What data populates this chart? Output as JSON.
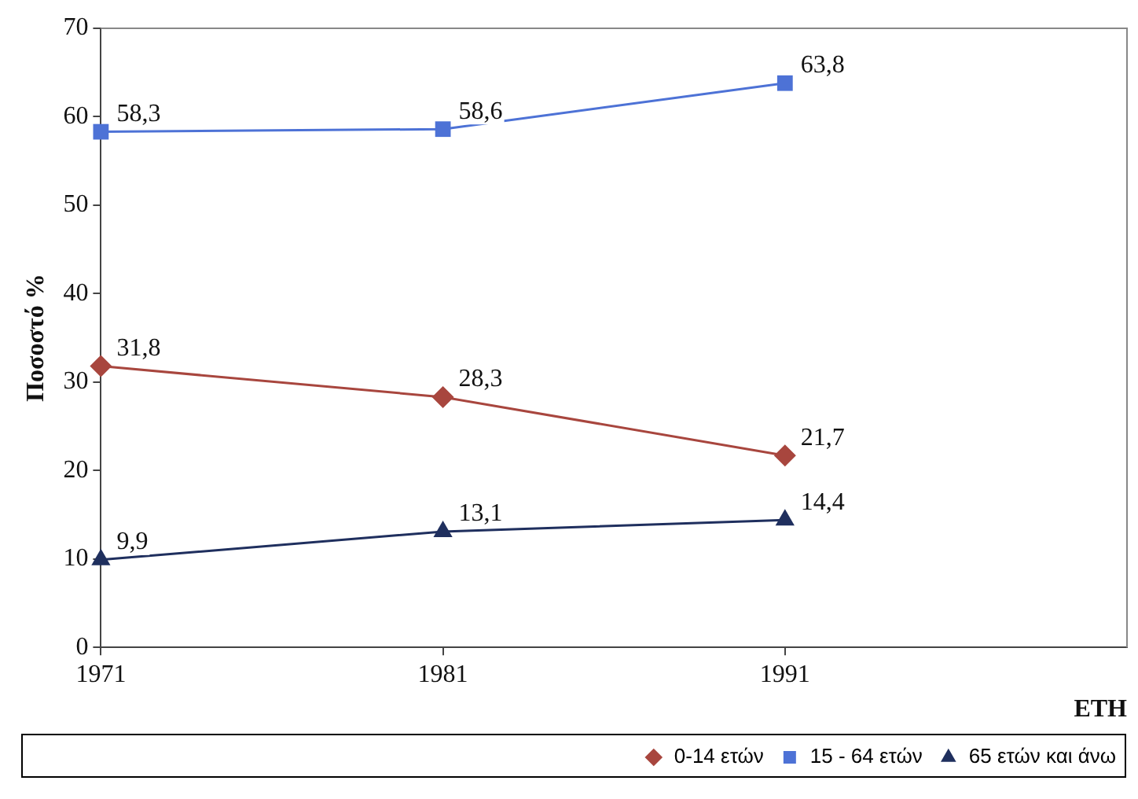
{
  "chart_data": {
    "type": "line",
    "ylabel": "Ποσοστό %",
    "xlabel": "ΕΤΗ",
    "x": [
      1971,
      1981,
      1991
    ],
    "xlim": [
      1971,
      2001
    ],
    "xticks": [
      1971,
      1981,
      1991
    ],
    "ylim": [
      0,
      70
    ],
    "yticks": [
      0,
      10,
      20,
      30,
      40,
      50,
      60,
      70
    ],
    "grid": false,
    "legend": "bottom",
    "series": [
      {
        "name": "0-14 ετών",
        "color": "#a8463e",
        "marker": "diamond",
        "values": [
          31.8,
          28.3,
          21.7
        ],
        "value_labels": [
          "31,8",
          "28,3",
          "21,7"
        ]
      },
      {
        "name": "15 - 64 ετών",
        "color": "#4d72d6",
        "marker": "square",
        "values": [
          58.3,
          58.6,
          63.8
        ],
        "value_labels": [
          "58,3",
          "58,6",
          "63,8"
        ]
      },
      {
        "name": "65 ετών και άνω",
        "color": "#1f2f5e",
        "marker": "triangle",
        "values": [
          9.9,
          13.1,
          14.4
        ],
        "value_labels": [
          "9,9",
          "13,1",
          "14,4"
        ]
      }
    ]
  }
}
